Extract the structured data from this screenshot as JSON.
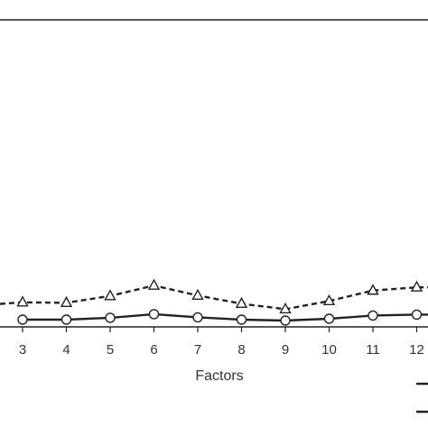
{
  "chart_data": {
    "type": "line",
    "xlabel": "Factors",
    "categories": [
      "3",
      "4",
      "5",
      "6",
      "7",
      "8",
      "9",
      "10",
      "11",
      "12"
    ],
    "series": [
      {
        "style": "dashed",
        "marker": "triangle",
        "color": "#222222",
        "values": [
          0.38,
          0.37,
          0.52,
          0.75,
          0.53,
          0.35,
          0.23,
          0.41,
          0.64,
          0.71
        ]
      },
      {
        "style": "solid",
        "marker": "circle",
        "color": "#222222",
        "values": [
          0.0,
          0.0,
          0.04,
          0.12,
          0.05,
          0.0,
          -0.02,
          0.02,
          0.09,
          0.11
        ]
      }
    ],
    "ylim": [
      0,
      6
    ],
    "grid": false,
    "legend_position": "bottom-right"
  }
}
